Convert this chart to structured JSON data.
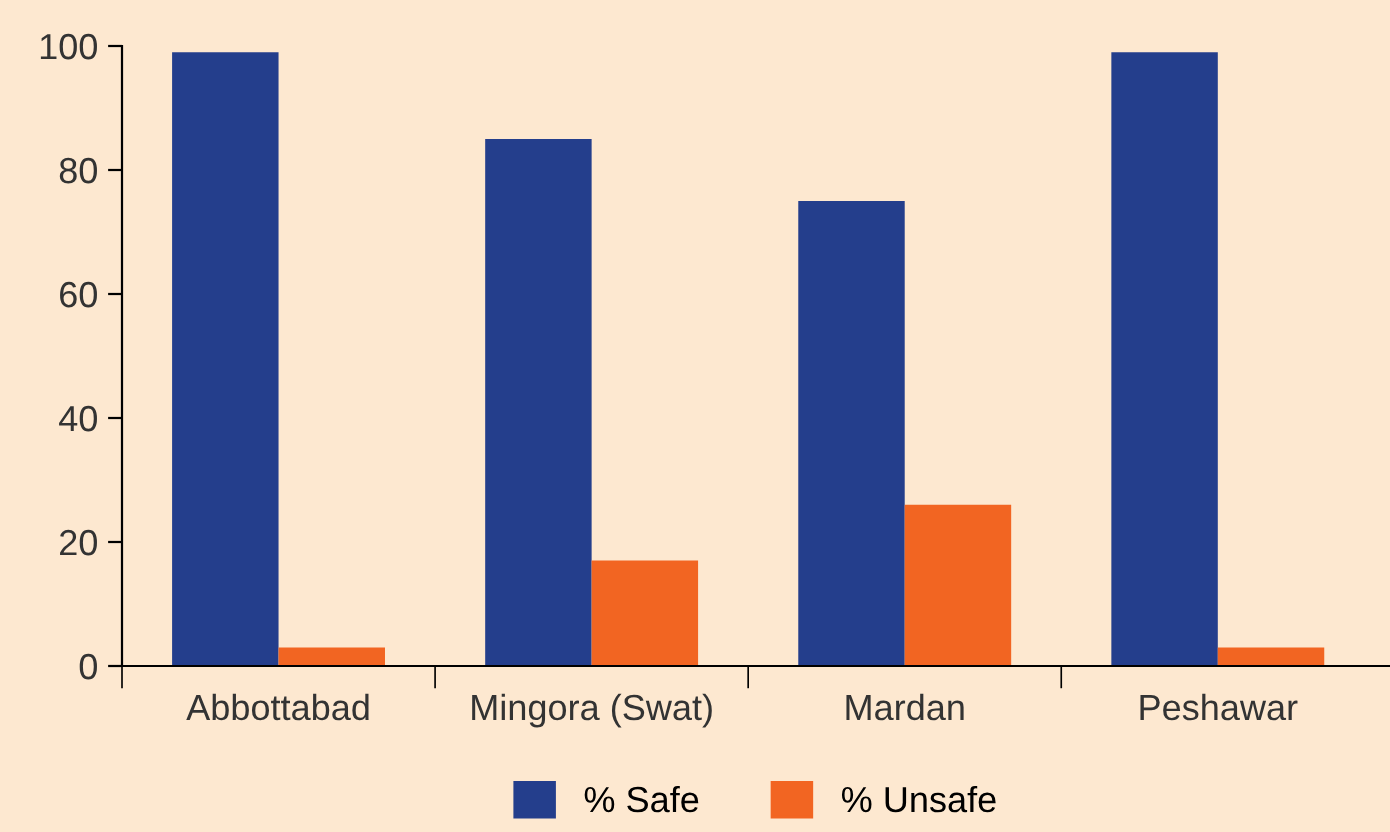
{
  "chart_data": {
    "type": "bar",
    "categories": [
      "Abbottabad",
      "Mingora (Swat)",
      "Mardan",
      "Peshawar"
    ],
    "series": [
      {
        "name": "% Safe",
        "color": "#243e8c",
        "values": [
          99,
          85,
          75,
          99
        ]
      },
      {
        "name": "% Unsafe",
        "color": "#f26522",
        "values": [
          3,
          17,
          26,
          3
        ]
      }
    ],
    "ylim": [
      0,
      100
    ],
    "yticks": [
      0,
      20,
      40,
      60,
      80,
      100
    ],
    "grid": false,
    "legend": "bottom"
  }
}
